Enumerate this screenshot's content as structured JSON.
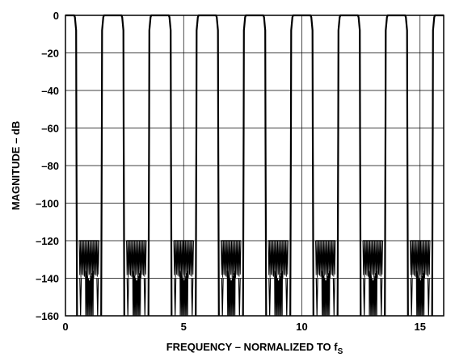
{
  "chart_data": {
    "type": "line",
    "title": "",
    "xlabel": "FREQUENCY – NORMALIZED TO f",
    "xlabel_subscript": "S",
    "ylabel": "MAGNITUDE – dB",
    "xlim": [
      0,
      16
    ],
    "ylim": [
      -160,
      0
    ],
    "xticks": [
      0,
      5,
      10,
      15
    ],
    "xtick_labels": [
      "0",
      "5",
      "10",
      "15"
    ],
    "yticks": [
      0,
      -20,
      -40,
      -60,
      -80,
      -100,
      -120,
      -140,
      -160
    ],
    "ytick_labels": [
      "0",
      "–20",
      "–40",
      "–60",
      "–80",
      "–100",
      "–120",
      "–140",
      "–160"
    ],
    "grid": true,
    "legend": "none",
    "series": [
      {
        "description": "periodic passbands repeating every 2 fs",
        "passbands": [
          [
            0,
            0.45
          ],
          [
            1.55,
            2.45
          ],
          [
            3.55,
            4.45
          ],
          [
            5.55,
            6.45
          ],
          [
            7.55,
            8.45
          ],
          [
            9.55,
            10.45
          ],
          [
            11.55,
            12.45
          ],
          [
            13.55,
            14.45
          ],
          [
            15.55,
            16
          ]
        ],
        "passband_level": 0,
        "stopband_centers": [
          1,
          3,
          5,
          7,
          9,
          11,
          13,
          15
        ],
        "stopband_floor": -120,
        "stopband_ripple_min": -140,
        "notch_depth": -160,
        "color": "#000000"
      }
    ]
  }
}
